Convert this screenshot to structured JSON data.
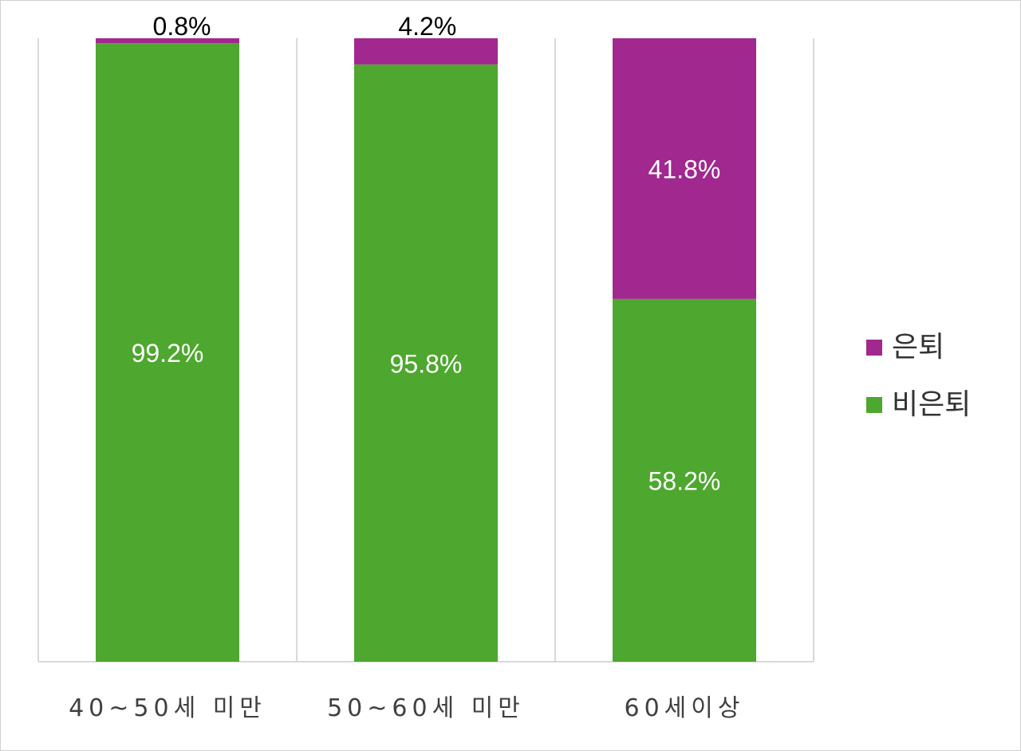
{
  "chart_data": {
    "type": "bar",
    "stacked": true,
    "percent_stacked": true,
    "categories": [
      "40~50세 미만",
      "50~60세 미만",
      "60세이상"
    ],
    "series": [
      {
        "name": "비은퇴",
        "values": [
          99.2,
          95.8,
          58.2
        ],
        "labels": [
          "99.2%",
          "95.8%",
          "58.2%"
        ],
        "color": "#4ea72e"
      },
      {
        "name": "은퇴",
        "values": [
          0.8,
          4.2,
          41.8
        ],
        "labels": [
          "0.8%",
          "4.2%",
          "41.8%"
        ],
        "color": "#a0288f"
      }
    ],
    "ylim": [
      0,
      100
    ],
    "grid": "vertical category separators",
    "legend_position": "right",
    "label_color_inside": "#ffffff",
    "label_color_outside": "#000000"
  }
}
